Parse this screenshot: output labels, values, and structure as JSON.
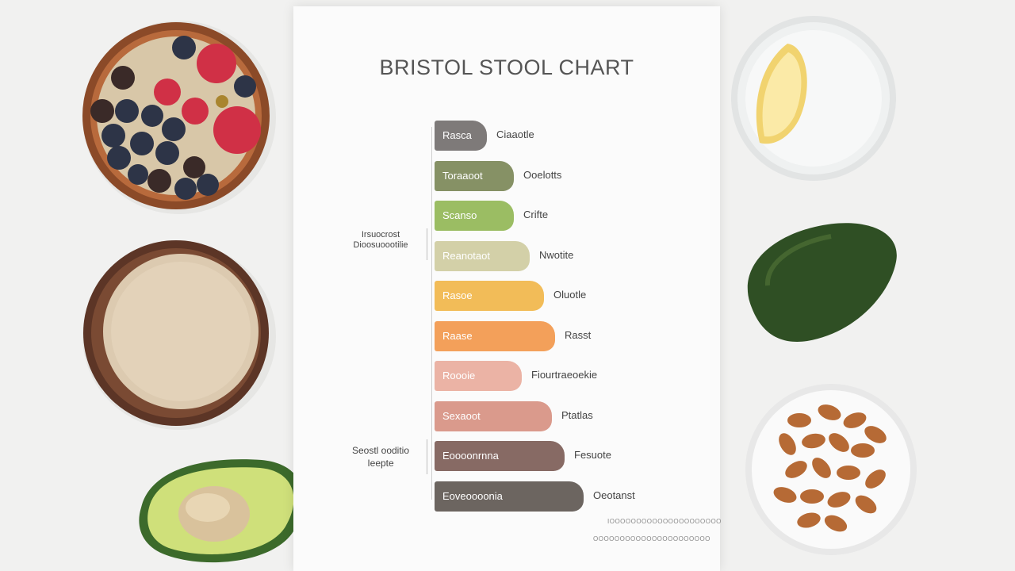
{
  "chart": {
    "title": "BRISTOL STOOL CHART",
    "left_note_top": [
      "Irsuocrost",
      "Dioosuoootilie"
    ],
    "left_note_bottom": [
      "Seostl ooditio",
      "Ieepte"
    ],
    "footnotes": [
      "IOOOOOOOOOOOOOOOOOOOOO",
      "OOOOOOOOOOOOOOOOOOOOOO"
    ],
    "rows": [
      {
        "label": "Rasca",
        "desc": "Ciaaotle",
        "color": "#7e7a79"
      },
      {
        "label": "Toraaoot",
        "desc": "Ooelotts",
        "color": "#869165"
      },
      {
        "label": "Scanso",
        "desc": "Crifte",
        "color": "#9bbd63"
      },
      {
        "label": "Reanotaot",
        "desc": "Nwotite",
        "color": "#d3d0a8"
      },
      {
        "label": "Rasoe",
        "desc": "Oluotle",
        "color": "#f2bc58"
      },
      {
        "label": "Raase",
        "desc": "Rasst",
        "color": "#f3a05a"
      },
      {
        "label": "Roooie",
        "desc": "Fiourtraeoekie",
        "color": "#ebb3a5"
      },
      {
        "label": "Sexaoot",
        "desc": "Ptatlas",
        "color": "#da9a8c"
      },
      {
        "label": "Eoooonrnna",
        "desc": "Fesuote",
        "color": "#876a64"
      },
      {
        "label": "Eoveoooonia",
        "desc": "Oeotanst",
        "color": "#6c6560"
      }
    ]
  },
  "scene_items": [
    "berry-oat-bowl",
    "oats-bowl",
    "avocado-half",
    "lemon-water-glass",
    "whole-avocado",
    "almond-dish"
  ]
}
